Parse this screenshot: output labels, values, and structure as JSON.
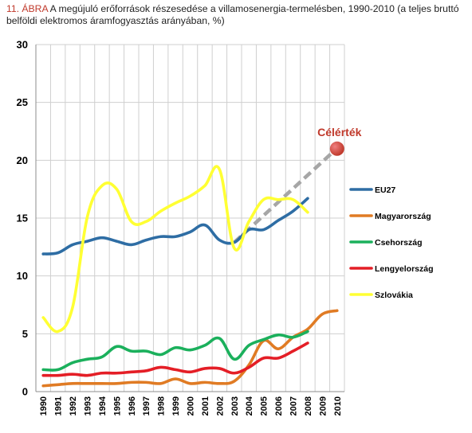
{
  "caption": {
    "figure_number": "11. ÁBRA",
    "text": " A megújuló erőforrások részesedése a villamosenergia-termelésben, 1990-2010 (a teljes bruttó belföldi elektromos áramfogyasztás arányában, %)"
  },
  "chart_data": {
    "type": "line",
    "x": [
      1990,
      1991,
      1992,
      1993,
      1994,
      1995,
      1996,
      1997,
      1998,
      1999,
      2000,
      2001,
      2002,
      2003,
      2004,
      2005,
      2006,
      2007,
      2008,
      2009,
      2010
    ],
    "xtick_labels": [
      "1990",
      "1991",
      "1992",
      "1993",
      "1994",
      "1995",
      "1996",
      "1997",
      "1998",
      "1999",
      "2000",
      "2001",
      "2002",
      "2003",
      "2004",
      "2005",
      "2006",
      "2007",
      "2008",
      "2009",
      "2010"
    ],
    "ylim": [
      0,
      30
    ],
    "yticks": [
      0,
      5,
      10,
      15,
      20,
      25,
      30
    ],
    "grid": true,
    "legend_placement": "right",
    "series": [
      {
        "name": "EU27",
        "color": "#2e6da4",
        "x": [
          1990,
          1991,
          1992,
          1993,
          1994,
          1995,
          1996,
          1997,
          1998,
          1999,
          2000,
          2001,
          2002,
          2003,
          2004,
          2005,
          2006,
          2007,
          2008
        ],
        "values": [
          11.9,
          12.0,
          12.7,
          13.0,
          13.3,
          13.0,
          12.7,
          13.1,
          13.4,
          13.4,
          13.8,
          14.4,
          13.1,
          12.9,
          14.0,
          14.0,
          14.8,
          15.6,
          16.7
        ]
      },
      {
        "name": "Magyarország",
        "color": "#e07b24",
        "x": [
          1990,
          1991,
          1992,
          1993,
          1994,
          1995,
          1996,
          1997,
          1998,
          1999,
          2000,
          2001,
          2002,
          2003,
          2004,
          2005,
          2006,
          2007,
          2008,
          2009,
          2010
        ],
        "values": [
          0.5,
          0.6,
          0.7,
          0.7,
          0.7,
          0.7,
          0.8,
          0.8,
          0.7,
          1.1,
          0.7,
          0.8,
          0.7,
          0.9,
          2.3,
          4.4,
          3.7,
          4.7,
          5.4,
          6.7,
          7.0
        ]
      },
      {
        "name": "Csehország",
        "color": "#1bb05c",
        "x": [
          1990,
          1991,
          1992,
          1993,
          1994,
          1995,
          1996,
          1997,
          1998,
          1999,
          2000,
          2001,
          2002,
          2003,
          2004,
          2005,
          2006,
          2007,
          2008
        ],
        "values": [
          1.9,
          1.9,
          2.5,
          2.8,
          3.0,
          3.9,
          3.5,
          3.5,
          3.2,
          3.8,
          3.6,
          4.0,
          4.6,
          2.8,
          4.0,
          4.5,
          4.9,
          4.7,
          5.2
        ]
      },
      {
        "name": "Lengyelország",
        "color": "#e41e26",
        "x": [
          1990,
          1991,
          1992,
          1993,
          1994,
          1995,
          1996,
          1997,
          1998,
          1999,
          2000,
          2001,
          2002,
          2003,
          2004,
          2005,
          2006,
          2007,
          2008
        ],
        "values": [
          1.4,
          1.4,
          1.5,
          1.4,
          1.6,
          1.6,
          1.7,
          1.8,
          2.1,
          1.9,
          1.7,
          2.0,
          2.0,
          1.6,
          2.1,
          2.9,
          2.9,
          3.5,
          4.2
        ]
      },
      {
        "name": "Szlovákia",
        "color": "#ffff33",
        "x": [
          1990,
          1991,
          1992,
          1993,
          1994,
          1995,
          1996,
          1997,
          1998,
          1999,
          2000,
          2001,
          2002,
          2003,
          2004,
          2005,
          2006,
          2007,
          2008
        ],
        "values": [
          6.4,
          5.2,
          7.3,
          15.1,
          17.8,
          17.5,
          14.7,
          14.7,
          15.6,
          16.3,
          16.9,
          17.8,
          19.2,
          12.4,
          14.7,
          16.6,
          16.6,
          16.6,
          15.5
        ]
      }
    ],
    "target": {
      "label": "Célérték",
      "line_color": "#a6a6a6",
      "point_color": "#c0392b",
      "from": {
        "x": 2003,
        "y": 12.9
      },
      "to": {
        "x": 2010,
        "y": 21.0
      }
    }
  }
}
